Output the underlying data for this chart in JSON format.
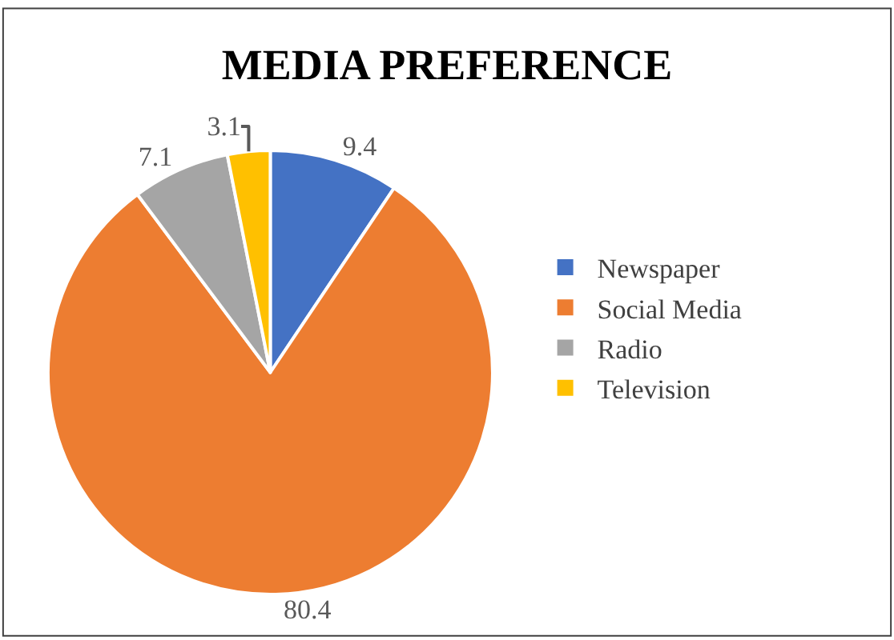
{
  "chart_data": {
    "type": "pie",
    "title": "MEDIA PREFERENCE",
    "categories": [
      "Newspaper",
      "Social Media",
      "Radio",
      "Television"
    ],
    "values": [
      9.4,
      80.4,
      7.1,
      3.1
    ],
    "colors": [
      "#4472c4",
      "#ed7d31",
      "#a5a5a5",
      "#ffc000"
    ],
    "data_labels": true,
    "legend": "right"
  }
}
